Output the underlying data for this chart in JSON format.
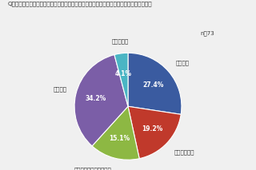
{
  "title": "Q．（使用できなくなったと答えた学校の中で）現在の教育環境について教えてください。",
  "n_label": "n＝73",
  "slices": [
    {
      "label": "元の校舎",
      "pct": 27.4,
      "color": "#3a5ba0"
    },
    {
      "label": "他校に間借り",
      "pct": 19.2,
      "color": "#c0392b"
    },
    {
      "label": "廃校・企業などに間借り",
      "pct": 15.1,
      "color": "#8db843"
    },
    {
      "label": "仮設校舎",
      "pct": 34.2,
      "color": "#7b5ea7"
    },
    {
      "label": "学校が統合",
      "pct": 4.1,
      "color": "#4ab5c4"
    }
  ],
  "bg_color": "#f0f0f0",
  "title_fontsize": 5.2,
  "label_fontsize": 5.0,
  "pct_fontsize": 5.5
}
